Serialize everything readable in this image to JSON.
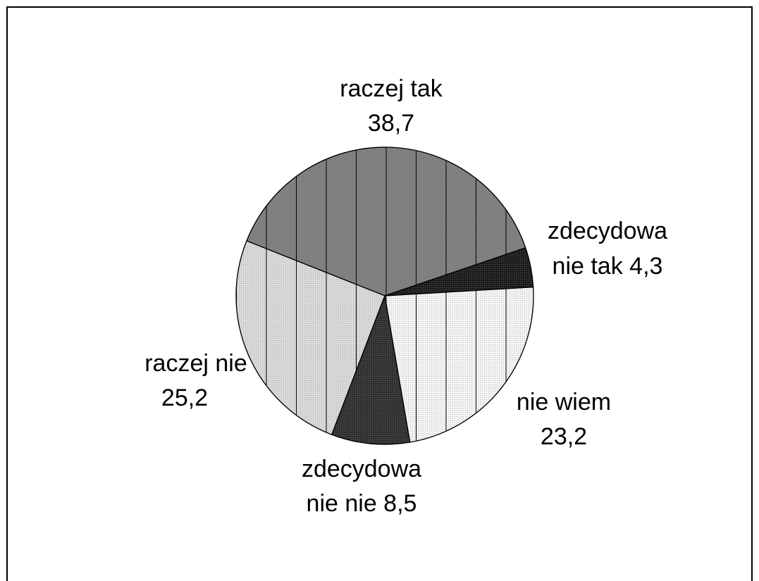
{
  "chart_data": {
    "type": "pie",
    "values": [
      38.7,
      4.3,
      23.2,
      8.5,
      25.2
    ],
    "data_labels": [
      [
        "raczej tak",
        "38,7"
      ],
      [
        "zdecydowa",
        "nie tak 4,3"
      ],
      [
        "nie wiem",
        "23,2"
      ],
      [
        "zdecydowa",
        "nie nie 8,5"
      ],
      [
        "raczej nie",
        "25,2"
      ]
    ],
    "colors": [
      "#7f7f7f",
      "#1c1c1c",
      "#f4f4f4",
      "#303030",
      "#dadada"
    ],
    "hatch": [
      true,
      false,
      true,
      false,
      true
    ]
  }
}
